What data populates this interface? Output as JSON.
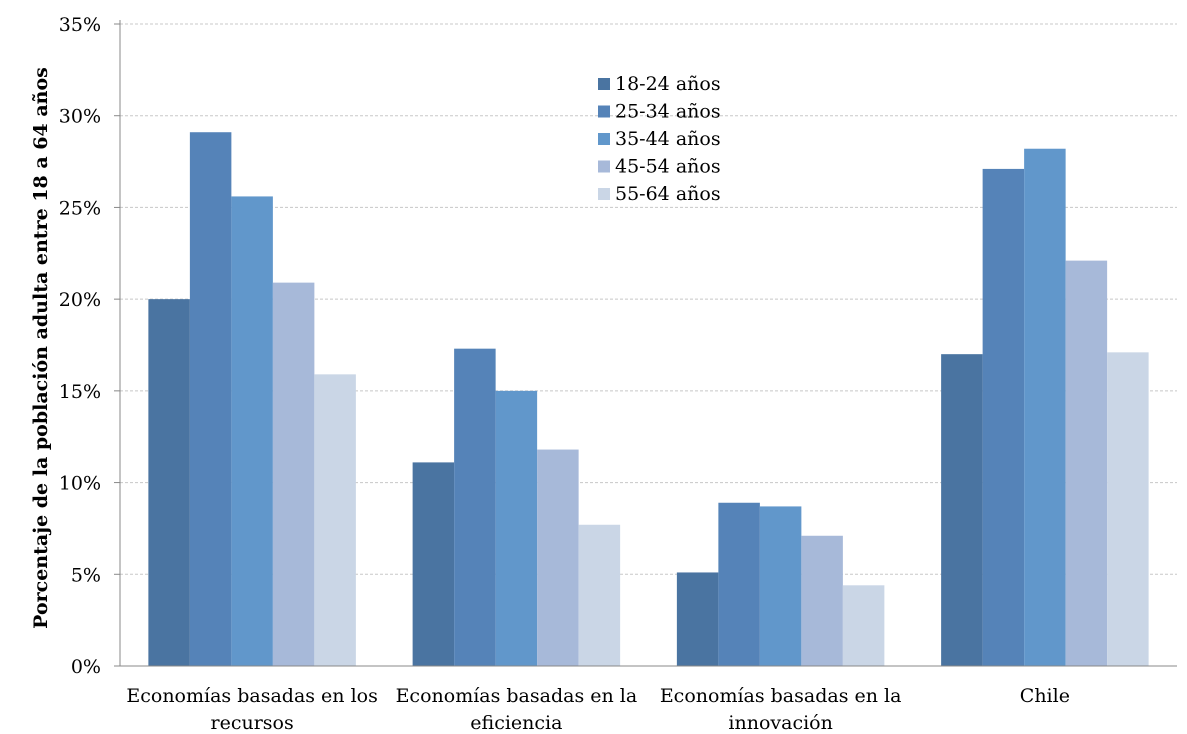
{
  "chart_data": {
    "type": "bar",
    "title": "",
    "xlabel": "",
    "ylabel": "Porcentaje de la población adulta entre 18 a 64 años",
    "ylim": [
      0,
      35
    ],
    "y_ticks": [
      "0%",
      "5%",
      "10%",
      "15%",
      "20%",
      "25%",
      "30%",
      "35%"
    ],
    "y_tick_values": [
      0,
      5,
      10,
      15,
      20,
      25,
      30,
      35
    ],
    "grid": true,
    "legend_position": "top-center",
    "categories": [
      [
        "Economías basadas en los",
        "recursos"
      ],
      [
        "Economías basadas en la",
        "eficiencia"
      ],
      [
        "Economías basadas en la",
        "innovación"
      ],
      [
        "Chile"
      ]
    ],
    "series": [
      {
        "name": "18-24 años",
        "color": "#4a74a1",
        "values": [
          20.0,
          11.1,
          5.1,
          17.0
        ]
      },
      {
        "name": "25-34 años",
        "color": "#5583b8",
        "values": [
          29.1,
          17.3,
          8.9,
          27.1
        ]
      },
      {
        "name": "35-44 años",
        "color": "#6197cb",
        "values": [
          25.6,
          15.0,
          8.7,
          28.2
        ]
      },
      {
        "name": "45-54 años",
        "color": "#a7b9d9",
        "values": [
          20.9,
          11.8,
          7.1,
          22.1
        ]
      },
      {
        "name": "55-64 años",
        "color": "#cad6e6",
        "values": [
          15.9,
          7.7,
          4.4,
          17.1
        ]
      }
    ]
  }
}
